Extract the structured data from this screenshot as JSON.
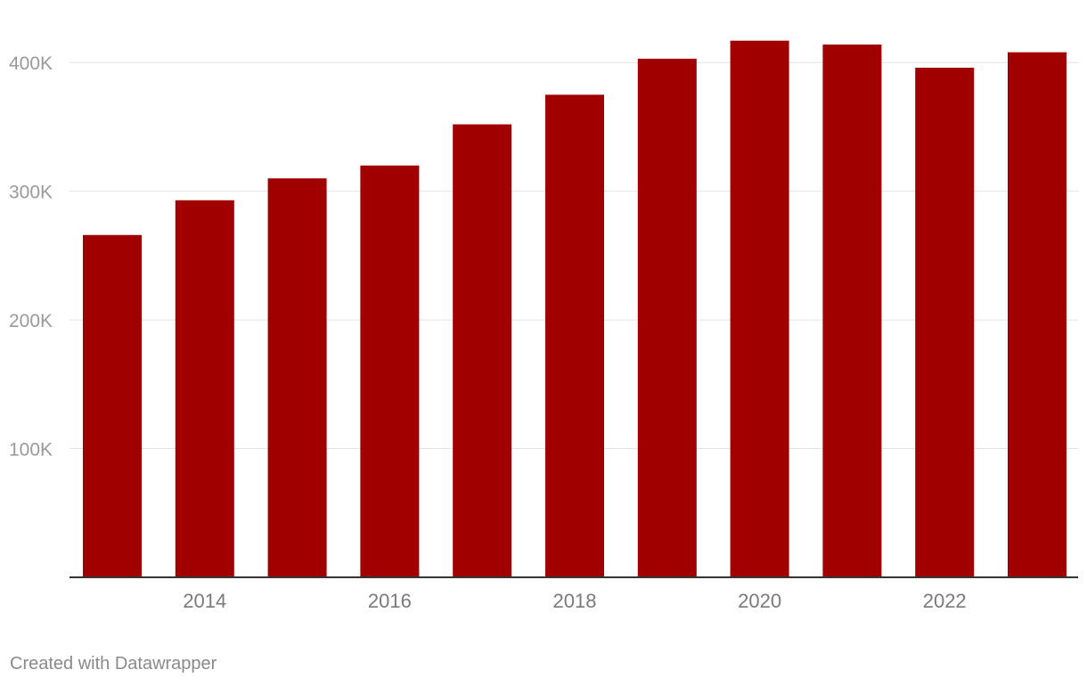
{
  "chart_data": {
    "type": "bar",
    "categories": [
      "2013",
      "2014",
      "2015",
      "2016",
      "2017",
      "2018",
      "2019",
      "2020",
      "2021",
      "2022",
      "2023"
    ],
    "values": [
      266000,
      293000,
      310000,
      320000,
      352000,
      375000,
      403000,
      417000,
      414000,
      396000,
      408000
    ],
    "x_tick_labels": [
      "2014",
      "2016",
      "2018",
      "2020",
      "2022"
    ],
    "y_ticks": [
      100000,
      200000,
      300000,
      400000
    ],
    "y_tick_labels": [
      "100K",
      "200K",
      "300K",
      "400K"
    ],
    "ylim": [
      0,
      432000
    ],
    "grid": true,
    "bar_color": "#a10000",
    "title": "",
    "xlabel": "",
    "ylabel": ""
  },
  "footer": {
    "credit": "Created with Datawrapper"
  }
}
